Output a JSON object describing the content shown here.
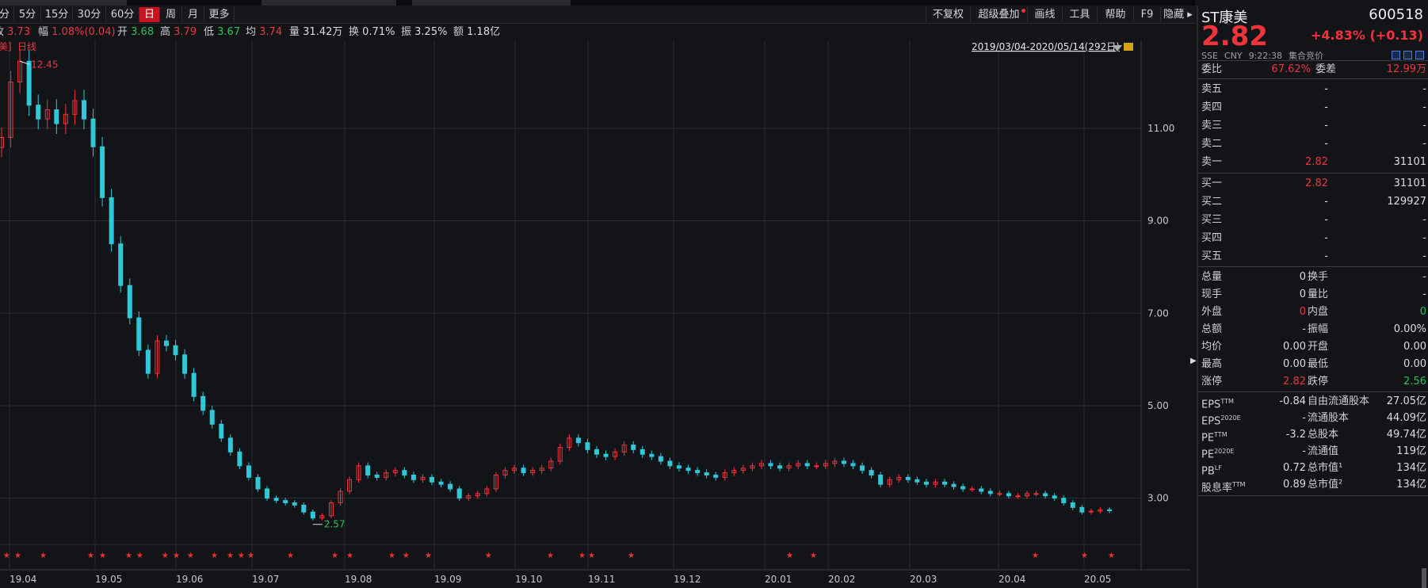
{
  "toolbar": {
    "periods": [
      "分",
      "5分",
      "15分",
      "30分",
      "60分",
      "日",
      "周",
      "月",
      "更多"
    ],
    "active_period": "日",
    "right_buttons": [
      "不复权",
      "超级叠加",
      "画线",
      "工具",
      "帮助",
      "F9",
      "隐藏"
    ]
  },
  "info": {
    "close_label": "收",
    "close_value": "3.73",
    "change_label": "幅",
    "change_value": "1.08%(0.04)",
    "open_label": "开",
    "open_value": "3.68",
    "high_label": "高",
    "high_value": "3.79",
    "low_label": "低",
    "low_value": "3.67",
    "avg_label": "均",
    "avg_value": "3.74",
    "volume_label": "量",
    "volume_value": "31.42万",
    "turnover_label": "换",
    "turnover_value": "0.71%",
    "amplitude_label": "振",
    "amplitude_value": "3.25%",
    "amount_label": "额",
    "amount_value": "1.18亿"
  },
  "chart_meta": {
    "stock_tag": "美]",
    "line_type": "日线",
    "date_range": "2019/03/04-2020/05/14(292日)",
    "max_label": "12.45",
    "min_label": "2.57",
    "colors": {
      "up": "#f0343c",
      "down": "#30c8d8",
      "grid": "#2a2c33",
      "bg": "#131418"
    }
  },
  "chart_data": {
    "type": "candlestick",
    "x_ticks": [
      "19.04",
      "19.05",
      "19.06",
      "19.07",
      "19.08",
      "19.09",
      "19.10",
      "19.11",
      "19.12",
      "20.01",
      "20.02",
      "20.03",
      "20.04",
      "20.05"
    ],
    "y_ticks": [
      "3.00",
      "5.00",
      "7.00",
      "9.00",
      "11.00"
    ],
    "ylim": [
      2.0,
      12.9
    ],
    "max_annotation": 12.45,
    "min_annotation": 2.57,
    "series_closes": [
      10.8,
      12.0,
      12.45,
      11.5,
      11.2,
      11.4,
      11.1,
      11.3,
      11.6,
      11.2,
      10.6,
      9.5,
      8.5,
      7.6,
      6.9,
      6.2,
      5.7,
      6.4,
      6.3,
      6.1,
      5.7,
      5.2,
      4.9,
      4.6,
      4.3,
      4.0,
      3.7,
      3.45,
      3.2,
      3.0,
      2.95,
      2.9,
      2.85,
      2.7,
      2.57,
      2.62,
      2.9,
      3.15,
      3.4,
      3.7,
      3.5,
      3.45,
      3.55,
      3.6,
      3.5,
      3.4,
      3.45,
      3.35,
      3.3,
      3.2,
      3.0,
      3.05,
      3.1,
      3.2,
      3.5,
      3.6,
      3.65,
      3.55,
      3.6,
      3.65,
      3.8,
      4.1,
      4.3,
      4.2,
      4.05,
      3.95,
      3.9,
      4.0,
      4.15,
      4.05,
      3.95,
      3.9,
      3.8,
      3.7,
      3.65,
      3.6,
      3.55,
      3.5,
      3.45,
      3.55,
      3.6,
      3.65,
      3.7,
      3.75,
      3.7,
      3.65,
      3.7,
      3.75,
      3.7,
      3.7,
      3.75,
      3.8,
      3.75,
      3.7,
      3.6,
      3.5,
      3.3,
      3.4,
      3.45,
      3.4,
      3.35,
      3.3,
      3.35,
      3.3,
      3.25,
      3.2,
      3.2,
      3.15,
      3.1,
      3.1,
      3.05,
      3.05,
      3.1,
      3.1,
      3.05,
      3.0,
      2.9,
      2.8,
      2.7,
      2.72,
      2.75,
      2.73
    ]
  },
  "quote": {
    "name": "ST康美",
    "code": "600518",
    "price": "2.82",
    "change": "+4.83% (+0.13)",
    "exchange": "SSE",
    "currency": "CNY",
    "time": "9:22:38",
    "status": "集合竞价",
    "weibi_label": "委比",
    "weibi_value": "67.62%",
    "weicha_label": "委差",
    "weicha_value": "12.99万",
    "asks": [
      {
        "label": "卖五",
        "price": "-",
        "vol": "-"
      },
      {
        "label": "卖四",
        "price": "-",
        "vol": "-"
      },
      {
        "label": "卖三",
        "price": "-",
        "vol": "-"
      },
      {
        "label": "卖二",
        "price": "-",
        "vol": "-"
      },
      {
        "label": "卖一",
        "price": "2.82",
        "vol": "31101"
      }
    ],
    "bids": [
      {
        "label": "买一",
        "price": "2.82",
        "vol": "31101"
      },
      {
        "label": "买二",
        "price": "-",
        "vol": "129927"
      },
      {
        "label": "买三",
        "price": "-",
        "vol": "-"
      },
      {
        "label": "买四",
        "price": "-",
        "vol": "-"
      },
      {
        "label": "买五",
        "price": "-",
        "vol": "-"
      }
    ],
    "stats": [
      {
        "l1": "总量",
        "v1": "0",
        "l2": "换手",
        "v2": "-"
      },
      {
        "l1": "现手",
        "v1": "0",
        "l2": "量比",
        "v2": "-"
      },
      {
        "l1": "外盘",
        "v1": "0",
        "l2": "内盘",
        "v2": "0"
      },
      {
        "l1": "总额",
        "v1": "-",
        "l2": "振幅",
        "v2": "0.00%"
      },
      {
        "l1": "均价",
        "v1": "0.00",
        "l2": "开盘",
        "v2": "0.00"
      },
      {
        "l1": "最高",
        "v1": "0.00",
        "l2": "最低",
        "v2": "0.00"
      },
      {
        "l1": "涨停",
        "v1": "2.82",
        "l2": "跌停",
        "v2": "2.56"
      }
    ],
    "fundamentals": [
      {
        "l1": "EPS",
        "s1": "TTM",
        "v1": "-0.84",
        "l2": "自由流通股本",
        "v2": "27.05亿"
      },
      {
        "l1": "EPS",
        "s1": "2020E",
        "v1": "-",
        "l2": "流通股本",
        "v2": "44.09亿"
      },
      {
        "l1": "PE",
        "s1": "TTM",
        "v1": "-3.2",
        "l2": "总股本",
        "v2": "49.74亿"
      },
      {
        "l1": "PE",
        "s1": "2020E",
        "v1": "-",
        "l2": "流通值",
        "v2": "119亿"
      },
      {
        "l1": "PB",
        "s1": "LF",
        "v1": "0.72",
        "l2": "总市值¹",
        "v2": "134亿"
      },
      {
        "l1": "股息率",
        "s1": "TTM",
        "v1": "0.89",
        "l2": "总市值²",
        "v2": "134亿"
      }
    ]
  }
}
